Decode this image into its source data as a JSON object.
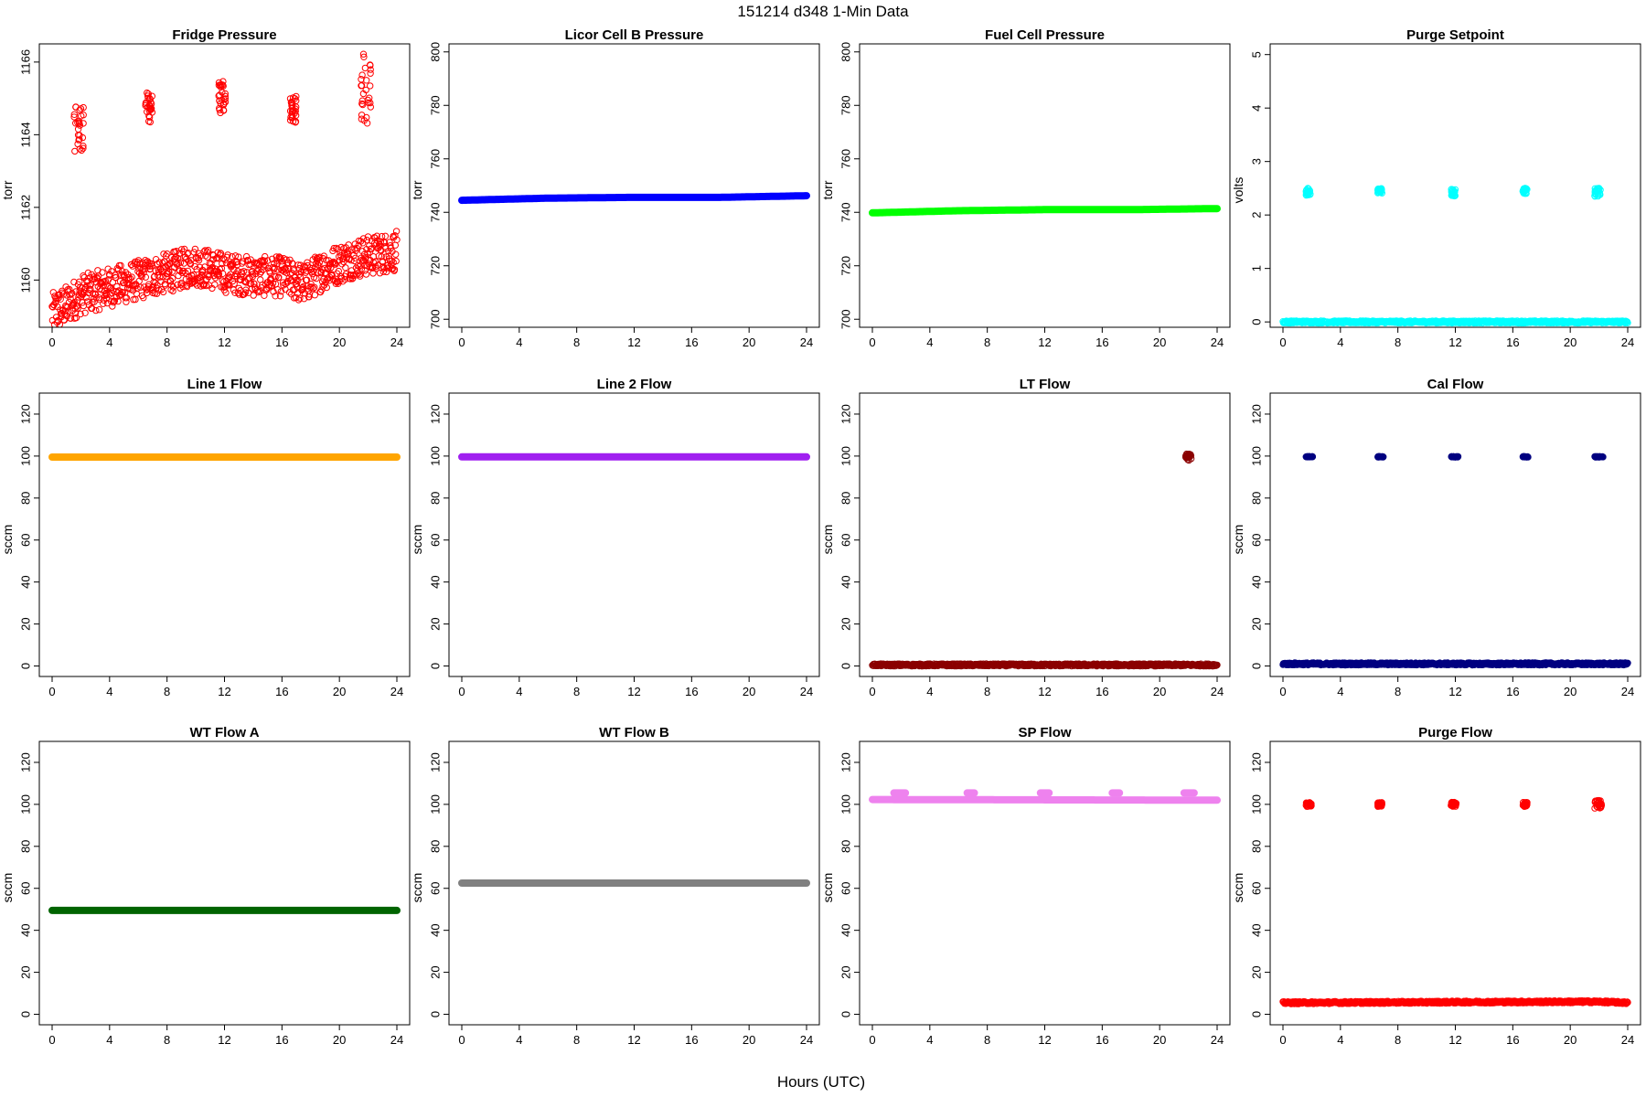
{
  "figure": {
    "title": "151214   d348   1-Min Data",
    "xlabel": "Hours (UTC)"
  },
  "chart_data": [
    {
      "type": "scatter",
      "title": "Fridge Pressure",
      "ylabel": "torr",
      "xlim": [
        0,
        24
      ],
      "ylim": [
        1158.7,
        1166.5
      ],
      "yticks": [
        1160,
        1162,
        1164,
        1166
      ],
      "color": "#ff0000",
      "marker": "open-circle",
      "baseline": [
        [
          0,
          1159.1
        ],
        [
          1,
          1159.3
        ],
        [
          2,
          1159.6
        ],
        [
          4,
          1159.8
        ],
        [
          6,
          1160.0
        ],
        [
          8,
          1160.2
        ],
        [
          10,
          1160.4
        ],
        [
          12,
          1160.2
        ],
        [
          14,
          1160.1
        ],
        [
          16,
          1160.1
        ],
        [
          17.5,
          1159.9
        ],
        [
          19,
          1160.3
        ],
        [
          21,
          1160.6
        ],
        [
          22.5,
          1160.7
        ],
        [
          24,
          1160.8
        ]
      ],
      "spikes": [
        {
          "x_range": [
            1.5,
            2.2
          ],
          "y_range": [
            1163.5,
            1164.8
          ]
        },
        {
          "x_range": [
            6.5,
            7.0
          ],
          "y_range": [
            1164.3,
            1165.2
          ]
        },
        {
          "x_range": [
            11.6,
            12.1
          ],
          "y_range": [
            1164.6,
            1165.5
          ]
        },
        {
          "x_range": [
            16.5,
            17.0
          ],
          "y_range": [
            1164.3,
            1165.1
          ]
        },
        {
          "x_range": [
            21.5,
            22.2
          ],
          "y_range": [
            1164.3,
            1166.3
          ]
        }
      ]
    },
    {
      "type": "line",
      "title": "Licor Cell B Pressure",
      "ylabel": "torr",
      "xlim": [
        0,
        24
      ],
      "ylim": [
        697,
        803
      ],
      "yticks": [
        700,
        720,
        740,
        760,
        780,
        800
      ],
      "color": "#0000ff",
      "baseline": [
        [
          0,
          744.5
        ],
        [
          6,
          745.3
        ],
        [
          12,
          745.6
        ],
        [
          18,
          745.6
        ],
        [
          24,
          746.2
        ]
      ]
    },
    {
      "type": "line",
      "title": "Fuel Cell Pressure",
      "ylabel": "torr",
      "xlim": [
        0,
        24
      ],
      "ylim": [
        697,
        803
      ],
      "yticks": [
        700,
        720,
        740,
        760,
        780,
        800
      ],
      "color": "#00ff00",
      "baseline": [
        [
          0,
          739.8
        ],
        [
          6,
          740.6
        ],
        [
          12,
          741.0
        ],
        [
          18,
          741.0
        ],
        [
          24,
          741.4
        ]
      ]
    },
    {
      "type": "scatter",
      "title": "Purge Setpoint",
      "ylabel": "volts",
      "xlim": [
        0,
        24
      ],
      "ylim": [
        -0.1,
        5.2
      ],
      "yticks": [
        0,
        1,
        2,
        3,
        4,
        5
      ],
      "color": "#00ffff",
      "marker": "open-circle",
      "baseline": [
        [
          0,
          0.0
        ],
        [
          24,
          0.0
        ]
      ],
      "spikes": [
        {
          "x_range": [
            1.6,
            1.9
          ],
          "y_range": [
            2.35,
            2.5
          ]
        },
        {
          "x_range": [
            6.6,
            6.9
          ],
          "y_range": [
            2.4,
            2.5
          ]
        },
        {
          "x_range": [
            11.7,
            12.0
          ],
          "y_range": [
            2.35,
            2.5
          ]
        },
        {
          "x_range": [
            16.7,
            17.0
          ],
          "y_range": [
            2.4,
            2.5
          ]
        },
        {
          "x_range": [
            21.7,
            22.1
          ],
          "y_range": [
            2.35,
            2.5
          ]
        }
      ]
    },
    {
      "type": "line",
      "title": "Line 1 Flow",
      "ylabel": "sccm",
      "xlim": [
        0,
        24
      ],
      "ylim": [
        -5,
        130
      ],
      "yticks": [
        0,
        20,
        40,
        60,
        80,
        100,
        120
      ],
      "color": "#ffa500",
      "baseline": [
        [
          0,
          99.5
        ],
        [
          24,
          99.5
        ]
      ]
    },
    {
      "type": "line",
      "title": "Line 2 Flow",
      "ylabel": "sccm",
      "xlim": [
        0,
        24
      ],
      "ylim": [
        -5,
        130
      ],
      "yticks": [
        0,
        20,
        40,
        60,
        80,
        100,
        120
      ],
      "color": "#a020f0",
      "baseline": [
        [
          0,
          99.6
        ],
        [
          24,
          99.6
        ]
      ]
    },
    {
      "type": "scatter",
      "title": "LT Flow",
      "ylabel": "sccm",
      "xlim": [
        0,
        24
      ],
      "ylim": [
        -5,
        130
      ],
      "yticks": [
        0,
        20,
        40,
        60,
        80,
        100,
        120
      ],
      "color": "#8b0000",
      "marker": "open-circle",
      "baseline": [
        [
          0,
          0.5
        ],
        [
          24,
          0.5
        ]
      ],
      "spikes": [
        {
          "x_range": [
            21.8,
            22.2
          ],
          "y_range": [
            98,
            101
          ]
        }
      ]
    },
    {
      "type": "scatter",
      "title": "Cal Flow",
      "ylabel": "sccm",
      "xlim": [
        0,
        24
      ],
      "ylim": [
        -5,
        130
      ],
      "yticks": [
        0,
        20,
        40,
        60,
        80,
        100,
        120
      ],
      "color": "#000080",
      "marker": "filled-circle",
      "baseline": [
        [
          0,
          1.0
        ],
        [
          24,
          1.0
        ]
      ],
      "spikes": [
        {
          "x_range": [
            1.6,
            2.1
          ],
          "y_range": [
            99.5,
            99.8
          ]
        },
        {
          "x_range": [
            6.6,
            7.0
          ],
          "y_range": [
            99.5,
            99.8
          ]
        },
        {
          "x_range": [
            11.7,
            12.2
          ],
          "y_range": [
            99.5,
            99.8
          ]
        },
        {
          "x_range": [
            16.7,
            17.1
          ],
          "y_range": [
            99.5,
            99.8
          ]
        },
        {
          "x_range": [
            21.7,
            22.3
          ],
          "y_range": [
            99.5,
            99.8
          ]
        }
      ]
    },
    {
      "type": "line",
      "title": "WT Flow A",
      "ylabel": "sccm",
      "xlim": [
        0,
        24
      ],
      "ylim": [
        -5,
        130
      ],
      "yticks": [
        0,
        20,
        40,
        60,
        80,
        100,
        120
      ],
      "color": "#006400",
      "baseline": [
        [
          0,
          49.5
        ],
        [
          24,
          49.5
        ]
      ]
    },
    {
      "type": "line",
      "title": "WT Flow B",
      "ylabel": "sccm",
      "xlim": [
        0,
        24
      ],
      "ylim": [
        -5,
        130
      ],
      "yticks": [
        0,
        20,
        40,
        60,
        80,
        100,
        120
      ],
      "color": "#808080",
      "baseline": [
        [
          0,
          62.5
        ],
        [
          24,
          62.5
        ]
      ]
    },
    {
      "type": "line",
      "title": "SP Flow",
      "ylabel": "sccm",
      "xlim": [
        0,
        24
      ],
      "ylim": [
        -5,
        130
      ],
      "yticks": [
        0,
        20,
        40,
        60,
        80,
        100,
        120
      ],
      "color": "#ee82ee",
      "baseline": [
        [
          0,
          102.3
        ],
        [
          24,
          102.0
        ]
      ],
      "spikes": [
        {
          "x_range": [
            1.5,
            2.3
          ],
          "y_range": [
            105.3,
            105.6
          ]
        },
        {
          "x_range": [
            6.6,
            7.1
          ],
          "y_range": [
            105.3,
            105.6
          ]
        },
        {
          "x_range": [
            11.7,
            12.3
          ],
          "y_range": [
            105.3,
            105.6
          ]
        },
        {
          "x_range": [
            16.7,
            17.2
          ],
          "y_range": [
            105.3,
            105.6
          ]
        },
        {
          "x_range": [
            21.7,
            22.4
          ],
          "y_range": [
            105.3,
            105.6
          ]
        }
      ]
    },
    {
      "type": "scatter",
      "title": "Purge Flow",
      "ylabel": "sccm",
      "xlim": [
        0,
        24
      ],
      "ylim": [
        -5,
        130
      ],
      "yticks": [
        0,
        20,
        40,
        60,
        80,
        100,
        120
      ],
      "color": "#ff0000",
      "marker": "open-circle",
      "baseline": [
        [
          0,
          5.5
        ],
        [
          12,
          5.8
        ],
        [
          22,
          6.0
        ],
        [
          24,
          5.5
        ]
      ],
      "spikes": [
        {
          "x_range": [
            1.6,
            2.0
          ],
          "y_range": [
            99,
            101
          ]
        },
        {
          "x_range": [
            6.6,
            6.9
          ],
          "y_range": [
            99,
            101
          ]
        },
        {
          "x_range": [
            11.7,
            12.1
          ],
          "y_range": [
            99,
            101
          ]
        },
        {
          "x_range": [
            16.7,
            17.0
          ],
          "y_range": [
            99,
            101
          ]
        },
        {
          "x_range": [
            21.7,
            22.2
          ],
          "y_range": [
            98,
            102
          ]
        }
      ]
    }
  ]
}
